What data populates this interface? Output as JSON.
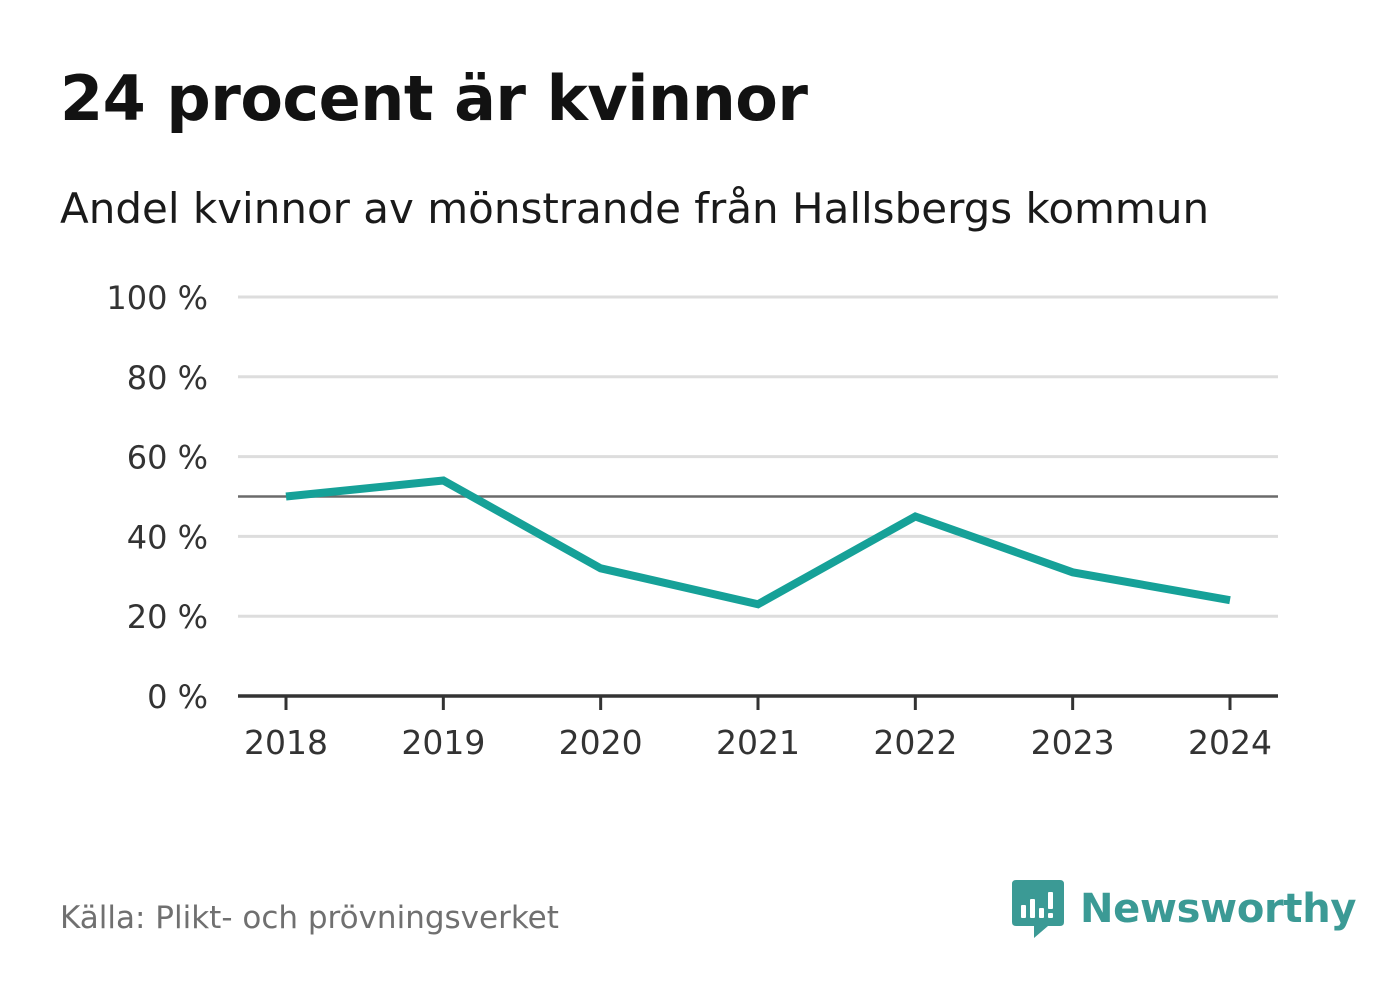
{
  "title": "24 procent är kvinnor",
  "subtitle": "Andel kvinnor av mönstrande från Hallsbergs kommun",
  "source": "Källa: Plikt- och prövningsverket",
  "brand": {
    "name": "Newsworthy",
    "icon": "newsworthy-logo-icon",
    "color": "#3b9a95"
  },
  "colors": {
    "line": "#16a198",
    "grid": "#dddddd",
    "reference": "#6b6b6b",
    "axis": "#333333"
  },
  "chart_data": {
    "type": "line",
    "title": "24 procent är kvinnor",
    "subtitle": "Andel kvinnor av mönstrande från Hallsbergs kommun",
    "xlabel": "",
    "ylabel": "",
    "categories": [
      "2018",
      "2019",
      "2020",
      "2021",
      "2022",
      "2023",
      "2024"
    ],
    "series": [
      {
        "name": "Andel kvinnor",
        "values": [
          50,
          54,
          32,
          23,
          45,
          31,
          24
        ]
      }
    ],
    "ylim": [
      0,
      100
    ],
    "yticks": [
      0,
      20,
      40,
      60,
      80,
      100
    ],
    "ytick_labels": [
      "0 %",
      "20 %",
      "40 %",
      "60 %",
      "80 %",
      "100 %"
    ],
    "reference_line": 50,
    "grid": true,
    "legend": "none"
  }
}
